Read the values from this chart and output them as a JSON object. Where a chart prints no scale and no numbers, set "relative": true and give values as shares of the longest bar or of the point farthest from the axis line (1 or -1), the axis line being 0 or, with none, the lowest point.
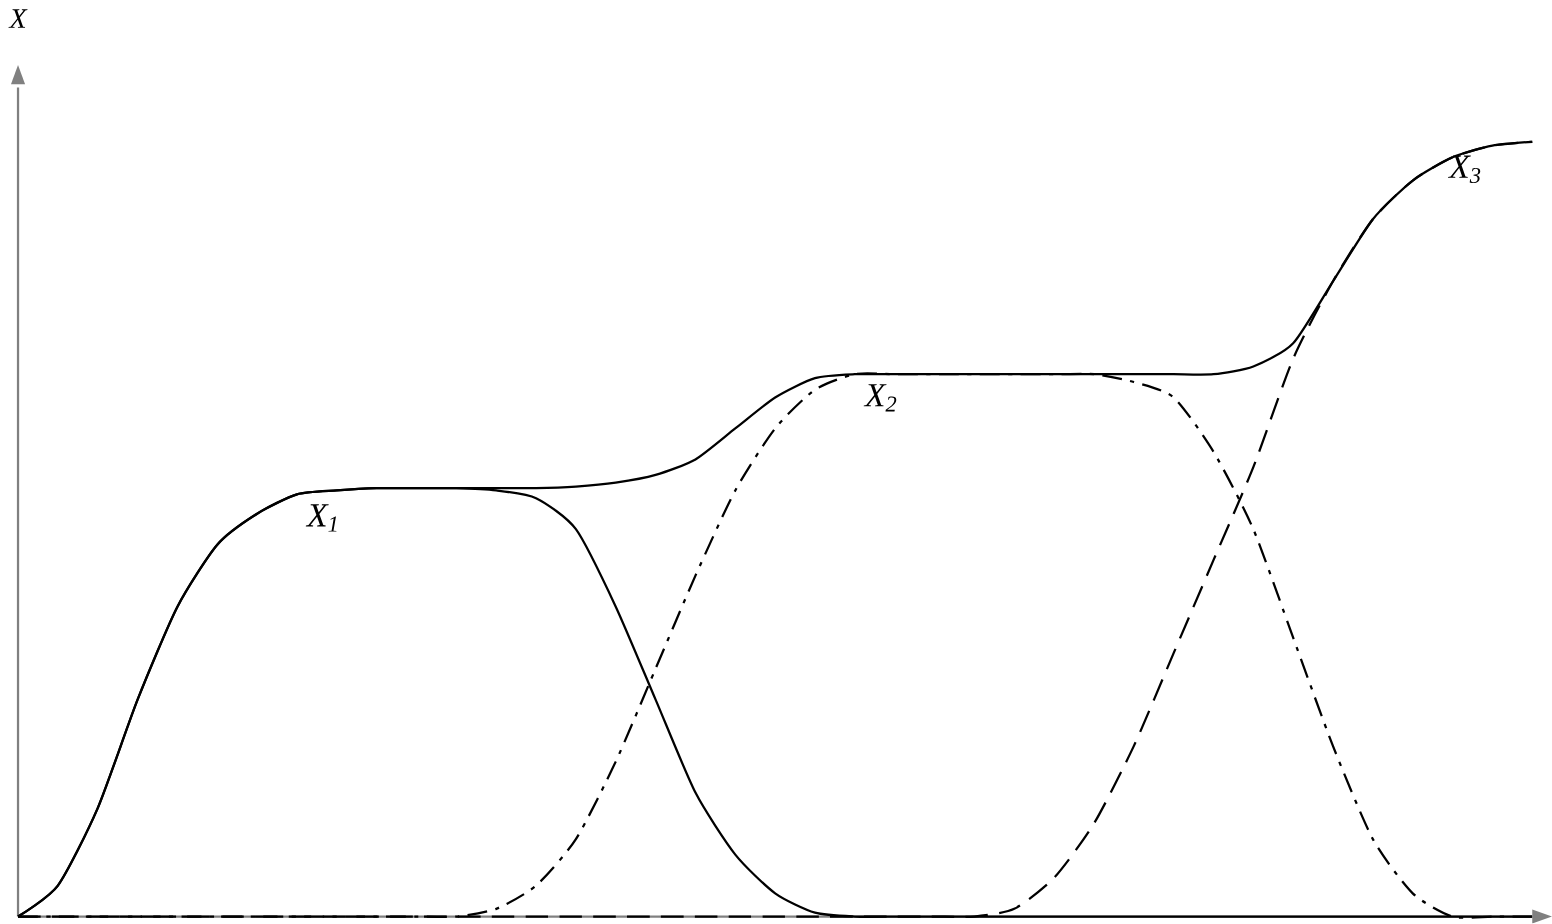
{
  "chart_data": {
    "type": "line",
    "relative": true,
    "ylabel": "X",
    "marker": "none",
    "categories": [
      null,
      null,
      null,
      null,
      null,
      null,
      null,
      null,
      null,
      null,
      null,
      null,
      null,
      null,
      null,
      null,
      null,
      null,
      null,
      null,
      null,
      null,
      null,
      null,
      null,
      null,
      null,
      null,
      null,
      null,
      null,
      null,
      null,
      null,
      null,
      null,
      null,
      null,
      null
    ],
    "series": [
      {
        "color": "#000000",
        "line_style": "solid",
        "values": [
          0,
          0.04,
          0.14,
          0.28,
          0.4,
          0.48,
          0.52,
          0.545,
          0.55,
          0.553,
          0.553,
          0.553,
          0.553,
          0.553,
          0.555,
          0.56,
          0.57,
          0.59,
          0.63,
          0.67,
          0.695,
          0.7,
          0.7,
          0.7,
          0.7,
          0.7,
          0.7,
          0.7,
          0.7,
          0.7,
          0.7,
          0.71,
          0.74,
          0.82,
          0.9,
          0.95,
          0.98,
          0.995,
          1.0
        ]
      },
      {
        "name": "X$_{1}$",
        "color": "#000000",
        "line_style": "solid",
        "values": [
          0,
          0.04,
          0.14,
          0.28,
          0.4,
          0.48,
          0.52,
          0.545,
          0.55,
          0.553,
          0.553,
          0.553,
          0.55,
          0.54,
          0.5,
          0.4,
          0.28,
          0.16,
          0.08,
          0.03,
          0.005,
          0,
          0,
          0,
          0,
          0,
          0,
          0,
          0,
          0,
          0,
          0,
          0,
          0,
          0,
          0,
          0,
          0,
          0
        ]
      },
      {
        "name": "X$_{2}$",
        "color": "#000000",
        "line_style": "dashdot",
        "values": [
          0,
          0,
          0,
          0,
          0,
          0,
          0,
          0,
          0,
          0,
          0,
          0,
          0.01,
          0.04,
          0.1,
          0.2,
          0.32,
          0.44,
          0.55,
          0.63,
          0.68,
          0.7,
          0.7,
          0.7,
          0.7,
          0.7,
          0.7,
          0.7,
          0.69,
          0.67,
          0.6,
          0.5,
          0.36,
          0.22,
          0.1,
          0.03,
          0,
          0,
          0
        ]
      },
      {
        "name": "X$_{3}$",
        "color": "#000000",
        "line_style": "dashed",
        "values": [
          0,
          0,
          0,
          0,
          0,
          0,
          0,
          0,
          0,
          0,
          0,
          0,
          0,
          0,
          0,
          0,
          0,
          0,
          0,
          0,
          0,
          0,
          0,
          0,
          0,
          0.01,
          0.05,
          0.12,
          0.22,
          0.34,
          0.46,
          0.58,
          0.72,
          0.82,
          0.9,
          0.95,
          0.98,
          0.995,
          1.0
        ]
      }
    ]
  }
}
